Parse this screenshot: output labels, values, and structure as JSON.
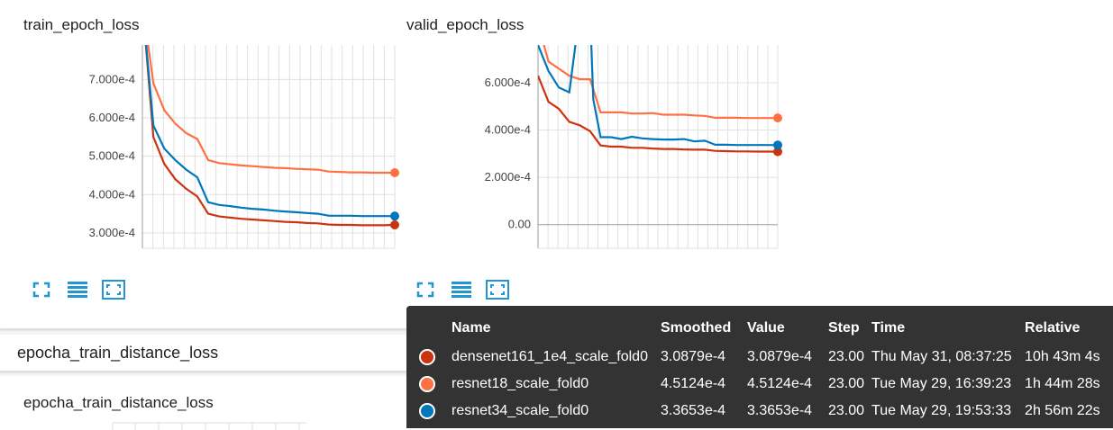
{
  "charts": [
    {
      "title": "train_epoch_loss",
      "ticks": [
        "7.000e-4",
        "6.000e-4",
        "5.000e-4",
        "4.000e-4",
        "3.000e-4"
      ]
    },
    {
      "title": "valid_epoch_loss",
      "ticks": [
        "6.000e-4",
        "4.000e-4",
        "2.000e-4",
        "0.00"
      ]
    }
  ],
  "chart_data": [
    {
      "type": "line",
      "title": "train_epoch_loss",
      "xlim": [
        0,
        23
      ],
      "ylim": [
        0.00026,
        0.00079
      ],
      "series": [
        {
          "name": "densenet161_1e4_scale_fold0",
          "color": "#cc3311",
          "x": [
            0,
            1,
            2,
            3,
            4,
            5,
            6,
            7,
            8,
            9,
            10,
            11,
            12,
            13,
            14,
            15,
            16,
            17,
            18,
            19,
            20,
            21,
            22,
            23
          ],
          "values": [
            0.0009,
            0.00055,
            0.00048,
            0.00044,
            0.000415,
            0.000395,
            0.00035,
            0.000343,
            0.00034,
            0.000337,
            0.000335,
            0.000333,
            0.000331,
            0.000329,
            0.000328,
            0.000326,
            0.000325,
            0.000322,
            0.000321,
            0.000321,
            0.00032,
            0.00032,
            0.00032,
            0.000321
          ]
        },
        {
          "name": "resnet18_scale_fold0",
          "color": "#ff7043",
          "x": [
            0,
            1,
            2,
            3,
            4,
            5,
            6,
            7,
            8,
            9,
            10,
            11,
            12,
            13,
            14,
            15,
            16,
            17,
            18,
            19,
            20,
            21,
            22,
            23
          ],
          "values": [
            0.0009,
            0.00069,
            0.00062,
            0.000585,
            0.00056,
            0.000545,
            0.00049,
            0.000482,
            0.000479,
            0.000476,
            0.000474,
            0.000472,
            0.00047,
            0.000469,
            0.000467,
            0.000466,
            0.000465,
            0.00046,
            0.000459,
            0.000458,
            0.000458,
            0.000457,
            0.000457,
            0.000457
          ]
        },
        {
          "name": "resnet34_scale_fold0",
          "color": "#0077bb",
          "x": [
            0,
            1,
            2,
            3,
            4,
            5,
            6,
            7,
            8,
            9,
            10,
            11,
            12,
            13,
            14,
            15,
            16,
            17,
            18,
            19,
            20,
            21,
            22,
            23
          ],
          "values": [
            0.0009,
            0.00058,
            0.00052,
            0.00049,
            0.000465,
            0.000445,
            0.00038,
            0.000373,
            0.00037,
            0.000366,
            0.000363,
            0.000361,
            0.000358,
            0.000356,
            0.000354,
            0.000352,
            0.00035,
            0.000345,
            0.000345,
            0.000345,
            0.000344,
            0.000344,
            0.000344,
            0.000344
          ]
        }
      ]
    },
    {
      "type": "line",
      "title": "valid_epoch_loss",
      "xlim": [
        0,
        23
      ],
      "ylim": [
        -0.0001,
        0.00076
      ],
      "series": [
        {
          "name": "densenet161_1e4_scale_fold0",
          "color": "#cc3311",
          "x": [
            0,
            1,
            2,
            3,
            4,
            5,
            6,
            7,
            8,
            9,
            10,
            11,
            12,
            13,
            14,
            15,
            16,
            17,
            18,
            19,
            20,
            21,
            22,
            23
          ],
          "values": [
            0.00063,
            0.00052,
            0.00049,
            0.000435,
            0.00042,
            0.000395,
            0.000335,
            0.00033,
            0.00033,
            0.000325,
            0.000325,
            0.000322,
            0.00032,
            0.00032,
            0.000318,
            0.000317,
            0.000317,
            0.000312,
            0.000311,
            0.00031,
            0.00031,
            0.000309,
            0.000309,
            0.00030879
          ]
        },
        {
          "name": "resnet18_scale_fold0",
          "color": "#ff7043",
          "x": [
            0,
            1,
            2,
            3,
            4,
            5,
            6,
            7,
            8,
            9,
            10,
            11,
            12,
            13,
            14,
            15,
            16,
            17,
            18,
            19,
            20,
            21,
            22,
            23
          ],
          "values": [
            0.00085,
            0.00069,
            0.00066,
            0.00063,
            0.000615,
            0.000615,
            0.000475,
            0.000475,
            0.000475,
            0.00047,
            0.00047,
            0.000472,
            0.000465,
            0.000465,
            0.000465,
            0.000462,
            0.00046,
            0.000452,
            0.000452,
            0.000452,
            0.000451,
            0.000451,
            0.000451,
            0.00045124
          ]
        },
        {
          "name": "resnet34_scale_fold0",
          "color": "#0077bb",
          "x": [
            0,
            1,
            2,
            3,
            4,
            5,
            5.3,
            6,
            7,
            8,
            9,
            10,
            11,
            12,
            13,
            14,
            15,
            16,
            17,
            18,
            19,
            20,
            21,
            22,
            23
          ],
          "values": [
            0.00076,
            0.00065,
            0.00058,
            0.00056,
            0.0009,
            0.0009,
            0.00053,
            0.00037,
            0.00037,
            0.000362,
            0.000372,
            0.000365,
            0.000362,
            0.00036,
            0.00036,
            0.000362,
            0.000352,
            0.000355,
            0.000338,
            0.000338,
            0.000337,
            0.000337,
            0.000337,
            0.000337,
            0.00033653
          ]
        }
      ]
    }
  ],
  "buttons": {
    "expand": "expand-icon",
    "data_table": "list-icon",
    "fit": "fit-domain-icon"
  },
  "section": {
    "header": "epocha_train_distance_loss",
    "chart_title": "epocha_train_distance_loss"
  },
  "tooltip": {
    "headers": [
      "Name",
      "Smoothed",
      "Value",
      "Step",
      "Time",
      "Relative"
    ],
    "rows": [
      {
        "color": "#cc3311",
        "name": "densenet161_1e4_scale_fold0",
        "smoothed": "3.0879e-4",
        "value": "3.0879e-4",
        "step": "23.00",
        "time": "Thu May 31, 08:37:25",
        "relative": "10h 43m 4s"
      },
      {
        "color": "#ff7043",
        "name": "resnet18_scale_fold0",
        "smoothed": "4.5124e-4",
        "value": "4.5124e-4",
        "step": "23.00",
        "time": "Tue May 29, 16:39:23",
        "relative": "1h 44m 28s"
      },
      {
        "color": "#0077bb",
        "name": "resnet34_scale_fold0",
        "smoothed": "3.3653e-4",
        "value": "3.3653e-4",
        "step": "23.00",
        "time": "Tue May 29, 19:53:33",
        "relative": "2h 56m 22s"
      }
    ]
  }
}
